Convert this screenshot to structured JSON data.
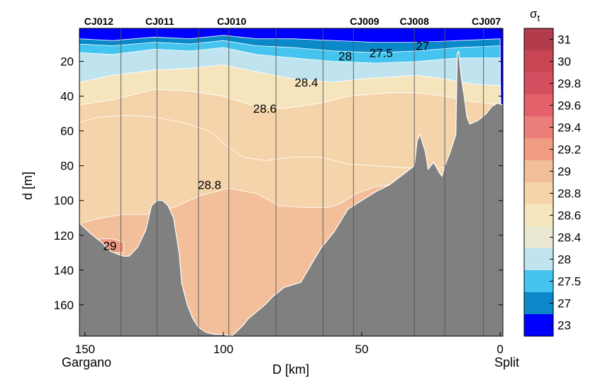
{
  "chart_data": {
    "type": "contour",
    "xlabel": "D [km]",
    "ylabel": "d [m]",
    "xlim": [
      152,
      -1
    ],
    "ylim": [
      178,
      1
    ],
    "x_ticks": [
      150,
      100,
      50,
      0
    ],
    "y_ticks": [
      20,
      40,
      60,
      80,
      100,
      120,
      140,
      160
    ],
    "endpoint_labels": {
      "left": "Gargano",
      "right": "Split"
    },
    "stations": [
      {
        "name": "CJ012",
        "x": 145
      },
      {
        "name": "CJ011",
        "x": 123
      },
      {
        "name": "CJ010",
        "x": 97
      },
      {
        "name": "CJ009",
        "x": 49
      },
      {
        "name": "CJ008",
        "x": 31
      },
      {
        "name": "CJ007",
        "x": 5
      }
    ],
    "profile_lines_x": [
      137,
      124,
      109,
      98,
      81,
      64,
      53,
      31,
      20,
      6
    ],
    "colorbar": {
      "title": "σt",
      "levels": [
        {
          "label": "23",
          "color": "#0000ff"
        },
        {
          "label": "27",
          "color": "#0a88c8"
        },
        {
          "label": "27.5",
          "color": "#44c4ee"
        },
        {
          "label": "28",
          "color": "#bfe4ef"
        },
        {
          "label": "28.4",
          "color": "#e9e7d0"
        },
        {
          "label": "28.6",
          "color": "#f5e4bc"
        },
        {
          "label": "28.8",
          "color": "#f6d4ab"
        },
        {
          "label": "29",
          "color": "#f3bf9b"
        },
        {
          "label": "29.2",
          "color": "#ef9c83"
        },
        {
          "label": "29.4",
          "color": "#eb7e79"
        },
        {
          "label": "29.6",
          "color": "#e2616b"
        },
        {
          "label": "29.8",
          "color": "#d44e5f"
        },
        {
          "label": "30",
          "color": "#c84654"
        },
        {
          "label": "31",
          "color": "#b33c4a"
        }
      ]
    },
    "contour_labels": [
      {
        "text": "27",
        "x": 28,
        "y": 11
      },
      {
        "text": "27.5",
        "x": 43,
        "y": 15
      },
      {
        "text": "28",
        "x": 56,
        "y": 17
      },
      {
        "text": "28.4",
        "x": 70,
        "y": 32
      },
      {
        "text": "28.6",
        "x": 85,
        "y": 47
      },
      {
        "text": "28.8",
        "x": 105,
        "y": 91
      },
      {
        "text": "29",
        "x": 141,
        "y": 126
      }
    ],
    "isolines": {
      "i27": [
        [
          152,
          7
        ],
        [
          140,
          8
        ],
        [
          125,
          6
        ],
        [
          112,
          7
        ],
        [
          100,
          5
        ],
        [
          88,
          7
        ],
        [
          75,
          7
        ],
        [
          60,
          8
        ],
        [
          45,
          9
        ],
        [
          30,
          9
        ],
        [
          15,
          8
        ],
        [
          0,
          7
        ]
      ],
      "i275": [
        [
          152,
          10
        ],
        [
          140,
          11
        ],
        [
          125,
          9
        ],
        [
          112,
          10
        ],
        [
          100,
          8
        ],
        [
          88,
          11
        ],
        [
          75,
          12
        ],
        [
          60,
          14
        ],
        [
          45,
          15
        ],
        [
          30,
          14
        ],
        [
          15,
          12
        ],
        [
          0,
          11
        ]
      ],
      "i28": [
        [
          152,
          15
        ],
        [
          140,
          16
        ],
        [
          125,
          13
        ],
        [
          112,
          14
        ],
        [
          100,
          12
        ],
        [
          88,
          16
        ],
        [
          75,
          18
        ],
        [
          60,
          20
        ],
        [
          45,
          21
        ],
        [
          30,
          20
        ],
        [
          15,
          18
        ],
        [
          0,
          18
        ]
      ],
      "i284": [
        [
          152,
          32
        ],
        [
          140,
          28
        ],
        [
          125,
          25
        ],
        [
          112,
          24
        ],
        [
          100,
          22
        ],
        [
          88,
          26
        ],
        [
          75,
          30
        ],
        [
          60,
          32
        ],
        [
          50,
          30
        ],
        [
          40,
          29
        ],
        [
          30,
          28
        ],
        [
          20,
          30
        ],
        [
          10,
          33
        ],
        [
          0,
          34
        ]
      ],
      "i286": [
        [
          152,
          45
        ],
        [
          140,
          42
        ],
        [
          125,
          36
        ],
        [
          112,
          37
        ],
        [
          100,
          40
        ],
        [
          88,
          46
        ],
        [
          78,
          47
        ],
        [
          65,
          44
        ],
        [
          55,
          40
        ],
        [
          40,
          38
        ],
        [
          30,
          38
        ],
        [
          20,
          40
        ],
        [
          10,
          43
        ],
        [
          0,
          45
        ]
      ],
      "i288": [
        [
          152,
          55
        ],
        [
          145,
          52
        ],
        [
          135,
          51
        ],
        [
          125,
          52
        ],
        [
          115,
          55
        ],
        [
          105,
          60
        ],
        [
          100,
          67
        ],
        [
          93,
          75
        ],
        [
          85,
          77
        ],
        [
          75,
          75
        ],
        [
          65,
          75
        ],
        [
          55,
          79
        ],
        [
          45,
          80
        ],
        [
          35,
          81
        ],
        [
          25,
          82
        ],
        [
          15,
          80
        ],
        [
          0,
          78
        ]
      ],
      "i29": [
        [
          152,
          113
        ],
        [
          144,
          110
        ],
        [
          136,
          108
        ],
        [
          128,
          108
        ],
        [
          118,
          104
        ],
        [
          108,
          97
        ],
        [
          98,
          93
        ],
        [
          88,
          96
        ],
        [
          80,
          103
        ],
        [
          70,
          104
        ],
        [
          62,
          104
        ],
        [
          58,
          102
        ],
        [
          52,
          96
        ],
        [
          45,
          92
        ],
        [
          35,
          90
        ],
        [
          25,
          88
        ],
        [
          15,
          85
        ],
        [
          0,
          85
        ]
      ],
      "i292": [
        [
          148,
          123
        ],
        [
          144,
          122
        ],
        [
          140,
          122
        ],
        [
          136,
          124
        ],
        [
          136,
          130
        ],
        [
          143,
          130
        ],
        [
          148,
          127
        ]
      ]
    },
    "bathymetry": [
      [
        152,
        113
      ],
      [
        148,
        119
      ],
      [
        144,
        124
      ],
      [
        141,
        129
      ],
      [
        138,
        131
      ],
      [
        136,
        132
      ],
      [
        134,
        132
      ],
      [
        131,
        127
      ],
      [
        128,
        117
      ],
      [
        126,
        103
      ],
      [
        124,
        100
      ],
      [
        122,
        100
      ],
      [
        120,
        103
      ],
      [
        118,
        110
      ],
      [
        116,
        130
      ],
      [
        115,
        148
      ],
      [
        113,
        160
      ],
      [
        111,
        168
      ],
      [
        109,
        173
      ],
      [
        106,
        176
      ],
      [
        103,
        177
      ],
      [
        100,
        177
      ],
      [
        97,
        178
      ],
      [
        93,
        172
      ],
      [
        91,
        168
      ],
      [
        88,
        164
      ],
      [
        85,
        160
      ],
      [
        82,
        155
      ],
      [
        78,
        150
      ],
      [
        72,
        147
      ],
      [
        65,
        128
      ],
      [
        60,
        118
      ],
      [
        55,
        105
      ],
      [
        50,
        100
      ],
      [
        45,
        95
      ],
      [
        40,
        91
      ],
      [
        35,
        85
      ],
      [
        31,
        80
      ],
      [
        30,
        66
      ],
      [
        29,
        62
      ],
      [
        27,
        72
      ],
      [
        26,
        82
      ],
      [
        24,
        78
      ],
      [
        22,
        84
      ],
      [
        21,
        86
      ],
      [
        20,
        80
      ],
      [
        18,
        72
      ],
      [
        16,
        62
      ],
      [
        15.5,
        16
      ],
      [
        15,
        14
      ],
      [
        14,
        30
      ],
      [
        13,
        40
      ],
      [
        12,
        52
      ],
      [
        11,
        56
      ],
      [
        8,
        54
      ],
      [
        5,
        50
      ],
      [
        3,
        46
      ],
      [
        1,
        44
      ],
      [
        -1,
        45
      ]
    ]
  }
}
